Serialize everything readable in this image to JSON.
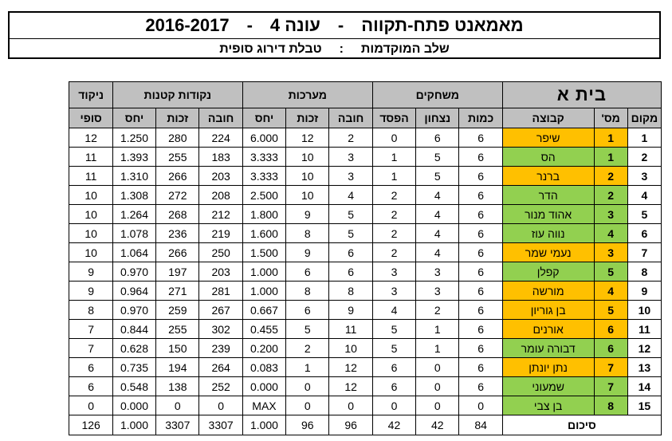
{
  "title": {
    "main": "מאמאנט פתח-תקווה",
    "sep1": "-",
    "season_label": "עונה 4",
    "sep2": "-",
    "years": "2016-2017",
    "stage": "שלב המוקדמות",
    "colon": ":",
    "table_name": "טבלת דירוג סופית"
  },
  "headers": {
    "house": "בית א",
    "matches": "משחקים",
    "sets": "מערכות",
    "small_points": "נקודות קטנות",
    "score": "ניקוד",
    "place": "מקום",
    "num": "מס'",
    "team": "קבוצה",
    "count": "כמות",
    "win": "נצחון",
    "loss": "הפסד",
    "debit": "חובה",
    "credit": "זכות",
    "ratio": "יחס",
    "s_debit": "חובה",
    "s_credit": "זכות",
    "s_ratio": "יחס",
    "final": "סופי"
  },
  "rows": [
    {
      "place": "1",
      "num": "1",
      "team": "שיפר",
      "color": "orange",
      "count": "6",
      "win": "6",
      "loss": "0",
      "debit": "2",
      "credit": "12",
      "ratio": "6.000",
      "s_debit": "224",
      "s_credit": "280",
      "s_ratio": "1.250",
      "final": "12"
    },
    {
      "place": "2",
      "num": "1",
      "team": "הס",
      "color": "green",
      "count": "6",
      "win": "5",
      "loss": "1",
      "debit": "3",
      "credit": "10",
      "ratio": "3.333",
      "s_debit": "183",
      "s_credit": "255",
      "s_ratio": "1.393",
      "final": "11"
    },
    {
      "place": "3",
      "num": "2",
      "team": "ברנר",
      "color": "orange",
      "count": "6",
      "win": "5",
      "loss": "1",
      "debit": "3",
      "credit": "10",
      "ratio": "3.333",
      "s_debit": "203",
      "s_credit": "266",
      "s_ratio": "1.310",
      "final": "11"
    },
    {
      "place": "4",
      "num": "2",
      "team": "הדר",
      "color": "green",
      "count": "6",
      "win": "4",
      "loss": "2",
      "debit": "4",
      "credit": "10",
      "ratio": "2.500",
      "s_debit": "208",
      "s_credit": "272",
      "s_ratio": "1.308",
      "final": "10"
    },
    {
      "place": "5",
      "num": "3",
      "team": "אהוד מנור",
      "color": "green",
      "count": "6",
      "win": "4",
      "loss": "2",
      "debit": "5",
      "credit": "9",
      "ratio": "1.800",
      "s_debit": "212",
      "s_credit": "268",
      "s_ratio": "1.264",
      "final": "10"
    },
    {
      "place": "6",
      "num": "4",
      "team": "נווה עוז",
      "color": "green",
      "count": "6",
      "win": "4",
      "loss": "2",
      "debit": "5",
      "credit": "8",
      "ratio": "1.600",
      "s_debit": "219",
      "s_credit": "236",
      "s_ratio": "1.078",
      "final": "10"
    },
    {
      "place": "7",
      "num": "3",
      "team": "נעמי שמר",
      "color": "orange",
      "count": "6",
      "win": "4",
      "loss": "2",
      "debit": "6",
      "credit": "9",
      "ratio": "1.500",
      "s_debit": "250",
      "s_credit": "266",
      "s_ratio": "1.064",
      "final": "10"
    },
    {
      "place": "8",
      "num": "5",
      "team": "קפלן",
      "color": "green",
      "count": "6",
      "win": "3",
      "loss": "3",
      "debit": "6",
      "credit": "6",
      "ratio": "1.000",
      "s_debit": "203",
      "s_credit": "197",
      "s_ratio": "0.970",
      "final": "9"
    },
    {
      "place": "9",
      "num": "4",
      "team": "מורשה",
      "color": "orange",
      "count": "6",
      "win": "3",
      "loss": "3",
      "debit": "8",
      "credit": "8",
      "ratio": "1.000",
      "s_debit": "281",
      "s_credit": "271",
      "s_ratio": "0.964",
      "final": "9"
    },
    {
      "place": "10",
      "num": "5",
      "team": "בן גוריון",
      "color": "orange",
      "count": "6",
      "win": "2",
      "loss": "4",
      "debit": "9",
      "credit": "6",
      "ratio": "0.667",
      "s_debit": "267",
      "s_credit": "259",
      "s_ratio": "0.970",
      "final": "8"
    },
    {
      "place": "11",
      "num": "6",
      "team": "אורנים",
      "color": "orange",
      "count": "6",
      "win": "1",
      "loss": "5",
      "debit": "11",
      "credit": "5",
      "ratio": "0.455",
      "s_debit": "302",
      "s_credit": "255",
      "s_ratio": "0.844",
      "final": "7"
    },
    {
      "place": "12",
      "num": "6",
      "team": "דבורה עומר",
      "color": "green",
      "count": "6",
      "win": "1",
      "loss": "5",
      "debit": "10",
      "credit": "2",
      "ratio": "0.200",
      "s_debit": "239",
      "s_credit": "150",
      "s_ratio": "0.628",
      "final": "7"
    },
    {
      "place": "13",
      "num": "7",
      "team": "נתן יונתן",
      "color": "orange",
      "count": "6",
      "win": "0",
      "loss": "6",
      "debit": "12",
      "credit": "1",
      "ratio": "0.083",
      "s_debit": "264",
      "s_credit": "194",
      "s_ratio": "0.735",
      "final": "6"
    },
    {
      "place": "14",
      "num": "7",
      "team": "שמעוני",
      "color": "green",
      "count": "6",
      "win": "0",
      "loss": "6",
      "debit": "12",
      "credit": "0",
      "ratio": "0.000",
      "s_debit": "252",
      "s_credit": "138",
      "s_ratio": "0.548",
      "final": "6"
    },
    {
      "place": "15",
      "num": "8",
      "team": "בן צבי",
      "color": "green",
      "count": "0",
      "win": "0",
      "loss": "0",
      "debit": "0",
      "credit": "0",
      "ratio": "MAX",
      "s_debit": "0",
      "s_credit": "0",
      "s_ratio": "0.000",
      "final": "0"
    }
  ],
  "summary": {
    "label": "סיכום",
    "count": "84",
    "win": "42",
    "loss": "42",
    "debit": "96",
    "credit": "96",
    "ratio": "1.000",
    "s_debit": "3307",
    "s_credit": "3307",
    "s_ratio": "1.000",
    "final": "126"
  },
  "colors": {
    "green": "#92d050",
    "orange": "#ffc000",
    "header": "#c0c0c0"
  }
}
